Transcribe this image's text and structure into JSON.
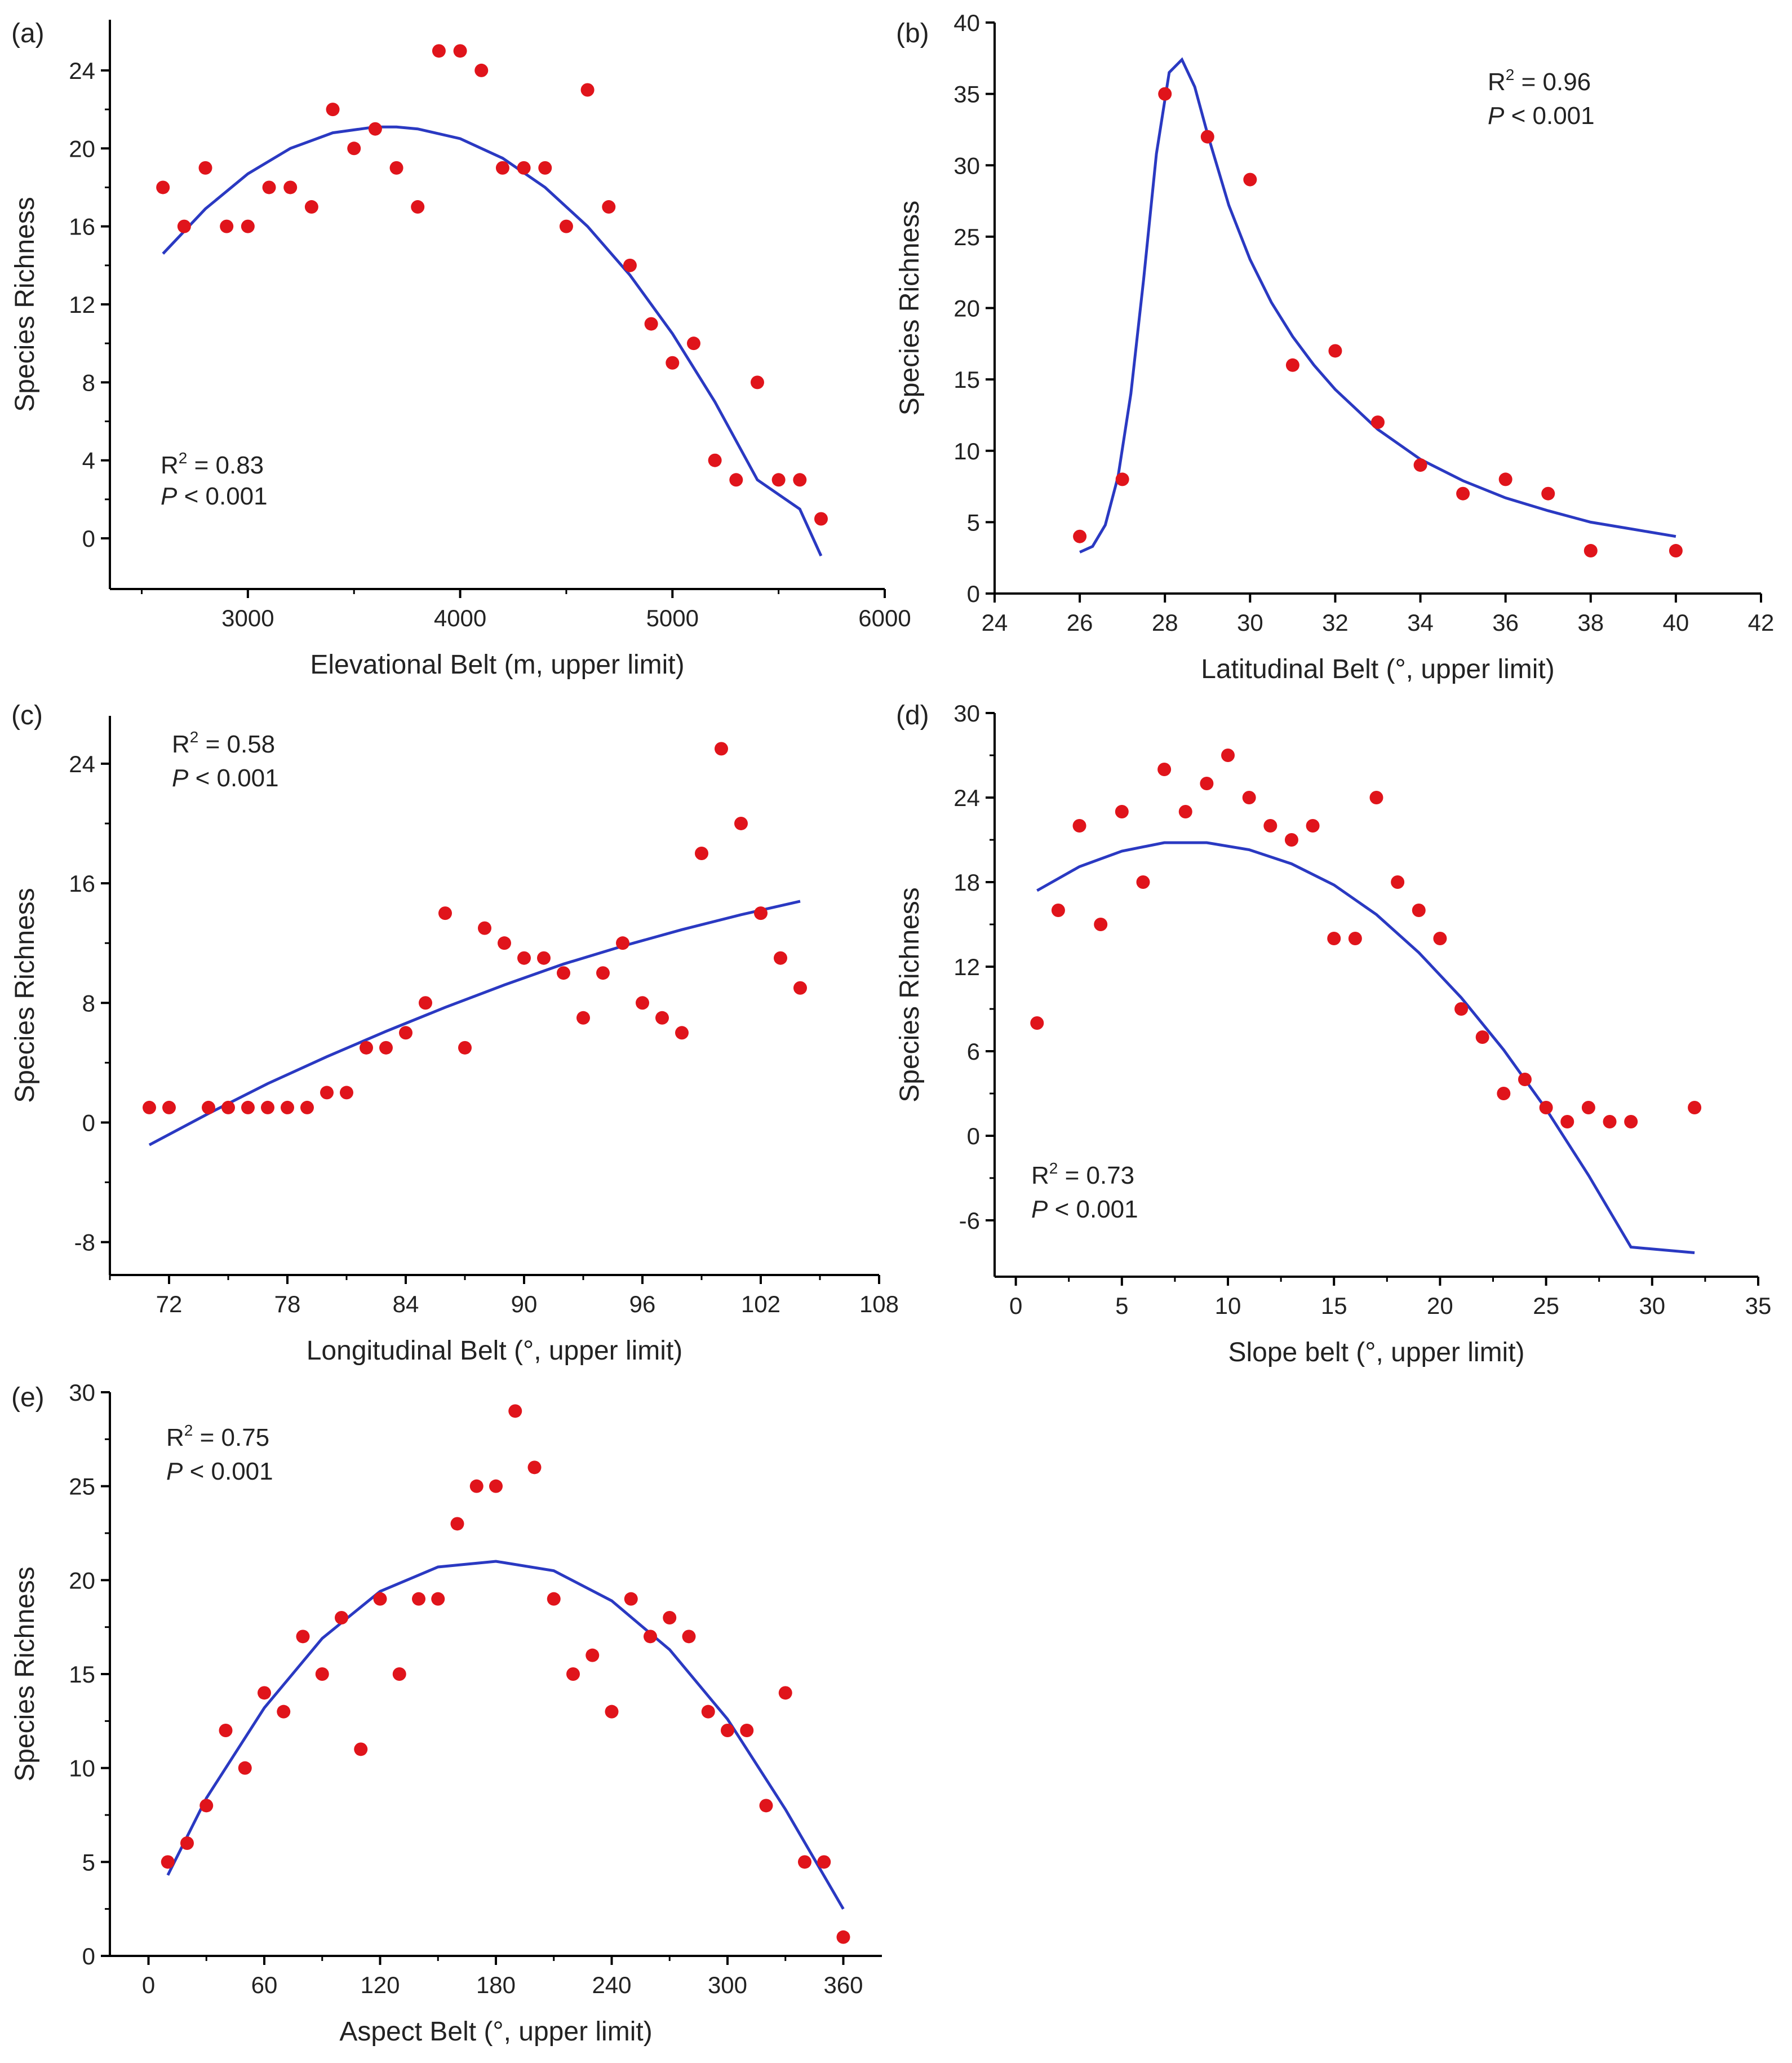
{
  "chart_data": [
    {
      "id": "a",
      "panel_label": "(a)",
      "type": "scatter",
      "xlabel": "Elevational Belt (m, upper limit)",
      "ylabel": "Species Richness",
      "xlim": [
        2350,
        6000
      ],
      "ylim": [
        -2.6,
        26.6
      ],
      "xticks": [
        3000,
        4000,
        5000,
        6000
      ],
      "yticks": [
        0,
        4,
        8,
        12,
        16,
        20,
        24
      ],
      "xtick_labels": [
        "3000",
        "4000",
        "5000",
        "6000"
      ],
      "ytick_labels": [
        "0",
        "4",
        "8",
        "12",
        "16",
        "20",
        "24"
      ],
      "stats": {
        "r2_prefix": "R",
        "r2_sup": "2",
        "r2_value": " = 0.83",
        "p_prefix": "P",
        "p_value": " < 0.001"
      },
      "x": [
        2600,
        2700,
        2800,
        2900,
        3000,
        3100,
        3200,
        3300,
        3400,
        3500,
        3600,
        3700,
        3800,
        3900,
        4000,
        4100,
        4200,
        4300,
        4400,
        4500,
        4600,
        4700,
        4800,
        4900,
        5000,
        5100,
        5200,
        5300,
        5400,
        5500,
        5600,
        5700
      ],
      "y": [
        18,
        16,
        19,
        16,
        16,
        18,
        18,
        17,
        22,
        20,
        21,
        19,
        17,
        25,
        25,
        24,
        19,
        19,
        19,
        16,
        23,
        17,
        14,
        11,
        9,
        10,
        4,
        3,
        8,
        3,
        3,
        1
      ],
      "fit": {
        "x": [
          2600,
          2800,
          3000,
          3200,
          3400,
          3600,
          3700,
          3800,
          4000,
          4200,
          4400,
          4600,
          4800,
          5000,
          5200,
          5400,
          5600,
          5700
        ],
        "y": [
          14.6,
          16.9,
          18.7,
          20.0,
          20.8,
          21.1,
          21.1,
          21.0,
          20.5,
          19.5,
          18.0,
          16.0,
          13.5,
          10.5,
          7.0,
          3.0,
          1.5,
          -0.9
        ]
      }
    },
    {
      "id": "b",
      "panel_label": "(b)",
      "type": "scatter",
      "xlabel": "Latitudinal Belt (°, upper limit)",
      "ylabel": "Species Richness",
      "xlim": [
        24,
        42
      ],
      "ylim": [
        0,
        40
      ],
      "xticks": [
        24,
        26,
        28,
        30,
        32,
        34,
        36,
        38,
        40,
        42
      ],
      "yticks": [
        0,
        5,
        10,
        15,
        20,
        25,
        30,
        35,
        40
      ],
      "xtick_labels": [
        "24",
        "26",
        "28",
        "30",
        "32",
        "34",
        "36",
        "38",
        "40",
        "42"
      ],
      "ytick_labels": [
        "0",
        "5",
        "10",
        "15",
        "20",
        "25",
        "30",
        "35",
        "40"
      ],
      "stats": {
        "r2_prefix": "R",
        "r2_sup": "2",
        "r2_value": " = 0.96",
        "p_prefix": "P",
        "p_value": " < 0.001"
      },
      "x": [
        26,
        27,
        28,
        29,
        30,
        31,
        32,
        33,
        34,
        35,
        36,
        37,
        38,
        40
      ],
      "y": [
        4,
        8,
        35,
        32,
        29,
        16,
        17,
        12,
        9,
        7,
        8,
        7,
        3,
        3
      ],
      "fit": {
        "x": [
          26,
          26.3,
          26.6,
          26.9,
          27.2,
          27.5,
          27.8,
          28.1,
          28.4,
          28.7,
          29,
          29.5,
          30,
          30.5,
          31,
          31.5,
          32,
          33,
          34,
          35,
          36,
          37,
          38,
          39,
          40
        ],
        "y": [
          2.9,
          3.3,
          4.8,
          8.2,
          14.0,
          22.0,
          30.8,
          36.5,
          37.4,
          35.5,
          32.2,
          27.2,
          23.4,
          20.4,
          18.0,
          16.0,
          14.3,
          11.5,
          9.4,
          7.9,
          6.7,
          5.8,
          5.0,
          4.5,
          4.0
        ]
      }
    },
    {
      "id": "c",
      "panel_label": "(c)",
      "type": "scatter",
      "xlabel": "Longitudinal Belt (°, upper limit)",
      "ylabel": "Species Richness",
      "xlim": [
        69,
        108
      ],
      "ylim": [
        -10.2,
        27.2
      ],
      "xticks": [
        72,
        78,
        84,
        90,
        96,
        102,
        108
      ],
      "yticks": [
        -8,
        0,
        8,
        16,
        24
      ],
      "xtick_labels": [
        "72",
        "78",
        "84",
        "90",
        "96",
        "102",
        "108"
      ],
      "ytick_labels": [
        "-8",
        "0",
        "8",
        "16",
        "24"
      ],
      "stats": {
        "r2_prefix": "R",
        "r2_sup": "2",
        "r2_value": " = 0.58",
        "p_prefix": "P",
        "p_value": " < 0.001"
      },
      "x": [
        71,
        72,
        74,
        75,
        76,
        77,
        78,
        79,
        80,
        81,
        82,
        83,
        84,
        85,
        86,
        87,
        88,
        89,
        90,
        91,
        92,
        93,
        94,
        95,
        96,
        97,
        98,
        99,
        100,
        101,
        102,
        103,
        104
      ],
      "y": [
        1,
        1,
        1,
        1,
        1,
        1,
        1,
        1,
        2,
        2,
        5,
        5,
        6,
        8,
        14,
        5,
        13,
        12,
        11,
        11,
        10,
        7,
        10,
        12,
        8,
        7,
        6,
        18,
        25,
        20,
        14,
        11,
        9
      ],
      "fit": {
        "x": [
          71,
          74,
          77,
          80,
          83,
          86,
          89,
          92,
          95,
          98,
          101,
          104
        ],
        "y": [
          -1.5,
          0.6,
          2.6,
          4.4,
          6.1,
          7.7,
          9.2,
          10.6,
          11.8,
          12.9,
          13.9,
          14.8
        ]
      }
    },
    {
      "id": "d",
      "panel_label": "(d)",
      "type": "scatter",
      "xlabel": "Slope belt (°, upper limit)",
      "ylabel": "Species Richness",
      "xlim": [
        -1,
        35
      ],
      "ylim": [
        -10,
        30
      ],
      "xticks": [
        0,
        5,
        10,
        15,
        20,
        25,
        30,
        35
      ],
      "yticks": [
        -6,
        0,
        6,
        12,
        18,
        24,
        30
      ],
      "xtick_labels": [
        "0",
        "5",
        "10",
        "15",
        "20",
        "25",
        "30",
        "35"
      ],
      "ytick_labels": [
        "-6",
        "0",
        "6",
        "12",
        "18",
        "24",
        "30"
      ],
      "stats": {
        "r2_prefix": "R",
        "r2_sup": "2",
        "r2_value": " = 0.73",
        "p_prefix": "P",
        "p_value": " < 0.001"
      },
      "x": [
        1,
        2,
        3,
        4,
        5,
        6,
        7,
        8,
        9,
        10,
        11,
        12,
        13,
        14,
        15,
        16,
        17,
        18,
        19,
        20,
        21,
        22,
        23,
        24,
        25,
        26,
        27,
        28,
        29,
        32
      ],
      "y": [
        8,
        16,
        22,
        15,
        23,
        18,
        26,
        23,
        25,
        27,
        24,
        22,
        21,
        22,
        14,
        14,
        24,
        18,
        16,
        14,
        9,
        7,
        3,
        4,
        2,
        1,
        2,
        1,
        1,
        2
      ],
      "fit": {
        "x": [
          1,
          3,
          5,
          7,
          9,
          11,
          13,
          15,
          17,
          19,
          21,
          23,
          25,
          27,
          29,
          32
        ],
        "y": [
          17.4,
          19.1,
          20.2,
          20.8,
          20.8,
          20.3,
          19.3,
          17.8,
          15.7,
          13.0,
          9.8,
          6.1,
          1.9,
          -2.8,
          -7.9,
          -8.3
        ]
      }
    },
    {
      "id": "e",
      "panel_label": "(e)",
      "type": "scatter",
      "xlabel": "Aspect Belt (°, upper limit)",
      "ylabel": "Species Richness",
      "xlim": [
        -20,
        380
      ],
      "ylim": [
        0,
        30
      ],
      "xticks": [
        0,
        60,
        120,
        180,
        240,
        300,
        360
      ],
      "yticks": [
        0,
        5,
        10,
        15,
        20,
        25,
        30
      ],
      "xtick_labels": [
        "0",
        "60",
        "120",
        "180",
        "240",
        "300",
        "360"
      ],
      "ytick_labels": [
        "0",
        "5",
        "10",
        "15",
        "20",
        "25",
        "30"
      ],
      "stats": {
        "r2_prefix": "R",
        "r2_sup": "2",
        "r2_value": " = 0.75",
        "p_prefix": "P",
        "p_value": " < 0.001"
      },
      "x": [
        10,
        20,
        30,
        40,
        50,
        60,
        70,
        80,
        90,
        100,
        110,
        120,
        130,
        140,
        150,
        160,
        170,
        180,
        190,
        200,
        210,
        220,
        230,
        240,
        250,
        260,
        270,
        280,
        290,
        300,
        310,
        320,
        330,
        340,
        350,
        360
      ],
      "y": [
        5,
        6,
        8,
        12,
        10,
        14,
        13,
        17,
        15,
        18,
        11,
        19,
        15,
        19,
        19,
        23,
        25,
        25,
        29,
        26,
        19,
        15,
        16,
        13,
        19,
        17,
        18,
        17,
        13,
        12,
        12,
        8,
        14,
        5,
        5,
        1
      ],
      "fit": {
        "x": [
          10,
          30,
          60,
          90,
          120,
          150,
          180,
          210,
          240,
          270,
          300,
          330,
          360
        ],
        "y": [
          4.3,
          8.4,
          13.2,
          16.9,
          19.4,
          20.7,
          21.0,
          20.5,
          18.9,
          16.3,
          12.6,
          7.8,
          2.5
        ]
      }
    }
  ]
}
